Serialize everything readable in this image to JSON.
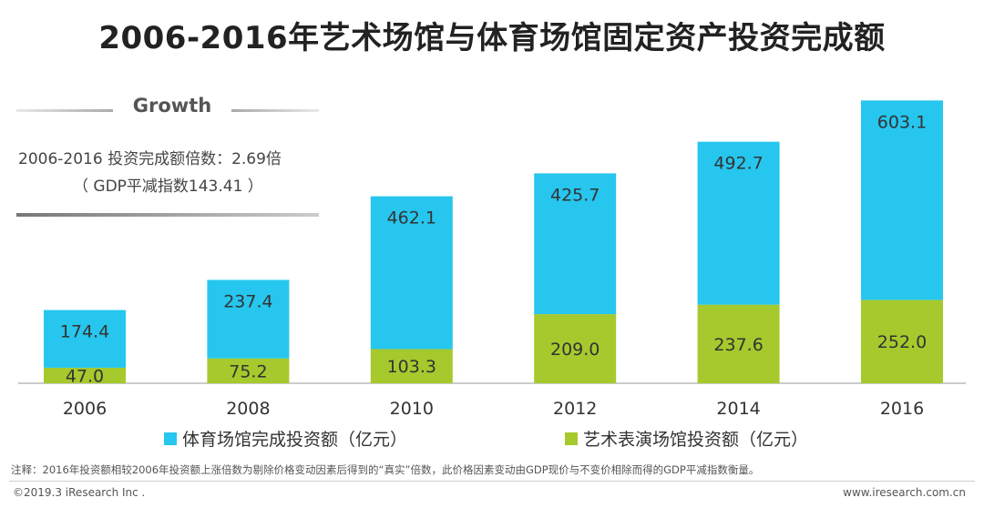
{
  "title": "2006-2016年艺术场馆与体育场馆固定资产投资完成额",
  "growth": {
    "label": "Growth",
    "line1": "2006-2016 投资完成额倍数：2.69倍",
    "line2": "（ GDP平减指数143.41 ）"
  },
  "chart_data": {
    "type": "bar",
    "stacked": true,
    "categories": [
      "2006",
      "2008",
      "2010",
      "2012",
      "2014",
      "2016"
    ],
    "series": [
      {
        "name": "艺术表演场馆投资额（亿元）",
        "values": [
          47.0,
          75.2,
          103.3,
          209.0,
          237.6,
          252.0
        ],
        "color": "#a6c92d",
        "labels": [
          "47.0",
          "75.2",
          "103.3",
          "209.0",
          "237.6",
          "252.0"
        ]
      },
      {
        "name": "体育场馆完成投资额（亿元）",
        "values": [
          174.4,
          237.4,
          462.1,
          425.7,
          492.7,
          603.1
        ],
        "color": "#26c6ee",
        "labels": [
          "174.4",
          "237.4",
          "462.1",
          "425.7",
          "492.7",
          "603.1"
        ]
      }
    ],
    "legend": [
      "体育场馆完成投资额（亿元）",
      "艺术表演场馆投资额（亿元）"
    ],
    "legend_position": "bottom",
    "grid": false
  },
  "footnote": "注释：2016年投资额相较2006年投资额上涨倍数为剔除价格变动因素后得到的“真实”倍数，此价格因素变动由GDP现价与不变价相除而得的GDP平减指数衡量。",
  "copyright": "©2019.3 iResearch Inc .",
  "site": "www.iresearch.com.cn"
}
